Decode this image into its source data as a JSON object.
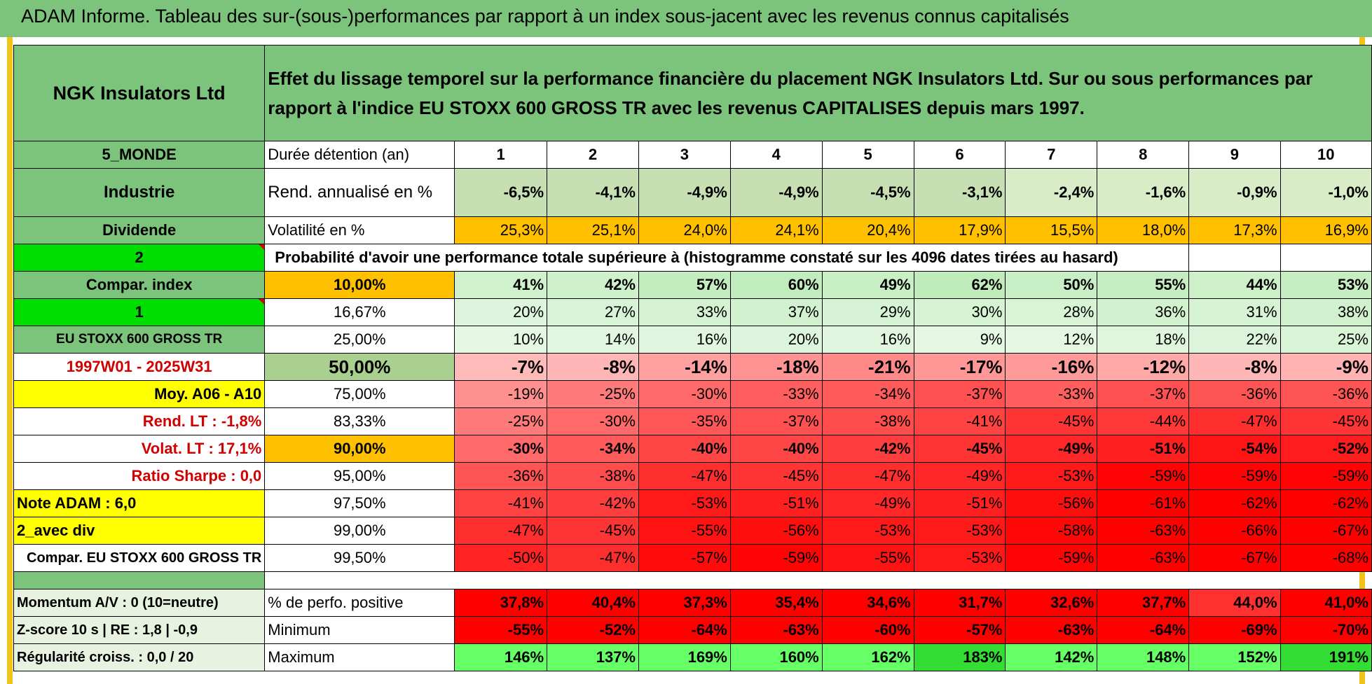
{
  "banner_title": "ADAM Informe. Tableau des sur-(sous-)performances par rapport à un index sous-jacent avec les revenus connus capitalisés",
  "company": "NGK Insulators Ltd",
  "description": "Effet du lissage temporel sur la performance financière du placement NGK Insulators Ltd. Sur ou sous performances par rapport à l'indice EU STOXX 600 GROSS TR avec les revenus CAPITALISES depuis mars 1997.",
  "left_labels": {
    "region": "5_MONDE",
    "sector": "Industrie",
    "dividend": "Dividende",
    "n2": "2",
    "compar_index": "Compar. index",
    "n1": "1",
    "index_name": "EU STOXX 600 GROSS TR",
    "period": "1997W01 - 2025W31",
    "moy": "Moy. A06 - A10",
    "rend_lt": "Rend. LT :    -1,8%",
    "volat_lt": "Volat. LT :    17,1%",
    "sharpe": "Ratio Sharpe :     0,0",
    "note": "Note ADAM : 6,0",
    "avec_div": "2_avec div",
    "compar_full": "Compar. EU STOXX 600 GROSS TR",
    "momentum": "Momentum A/V : 0 (10=neutre)",
    "zscore": "Z-score 10 s | RE : 1,8 | -0,9",
    "regularite": "Régularité croiss. : 0,0 / 20"
  },
  "row_labels": {
    "duree": "Durée détention (an)",
    "rend": "Rend. annualisé en %",
    "vol": "Volatilité en %",
    "proba": "Probabilité d'avoir une performance totale supérieure à (histogramme constaté sur les 4096 dates tirées au hasard)",
    "pct_pos": "% de perfo. positive",
    "minimum": "Minimum",
    "maximum": "Maximum"
  },
  "years": [
    "1",
    "2",
    "3",
    "4",
    "5",
    "6",
    "7",
    "8",
    "9",
    "10"
  ],
  "rend": [
    "-6,5%",
    "-4,1%",
    "-4,9%",
    "-4,9%",
    "-4,5%",
    "-3,1%",
    "-2,4%",
    "-1,6%",
    "-0,9%",
    "-1,0%"
  ],
  "vol": [
    "25,3%",
    "25,1%",
    "24,0%",
    "24,1%",
    "20,4%",
    "17,9%",
    "15,5%",
    "18,0%",
    "17,3%",
    "16,9%"
  ],
  "percentiles": [
    {
      "p": "10,00%",
      "values": [
        "41%",
        "42%",
        "57%",
        "60%",
        "49%",
        "62%",
        "50%",
        "55%",
        "44%",
        "53%"
      ]
    },
    {
      "p": "16,67%",
      "values": [
        "20%",
        "27%",
        "33%",
        "37%",
        "29%",
        "30%",
        "28%",
        "36%",
        "31%",
        "38%"
      ]
    },
    {
      "p": "25,00%",
      "values": [
        "10%",
        "14%",
        "16%",
        "20%",
        "16%",
        "9%",
        "12%",
        "18%",
        "22%",
        "25%"
      ]
    },
    {
      "p": "50,00%",
      "values": [
        "-7%",
        "-8%",
        "-14%",
        "-18%",
        "-21%",
        "-17%",
        "-16%",
        "-12%",
        "-8%",
        "-9%"
      ]
    },
    {
      "p": "75,00%",
      "values": [
        "-19%",
        "-25%",
        "-30%",
        "-33%",
        "-34%",
        "-37%",
        "-33%",
        "-37%",
        "-36%",
        "-36%"
      ]
    },
    {
      "p": "83,33%",
      "values": [
        "-25%",
        "-30%",
        "-35%",
        "-37%",
        "-38%",
        "-41%",
        "-45%",
        "-44%",
        "-47%",
        "-45%"
      ]
    },
    {
      "p": "90,00%",
      "values": [
        "-30%",
        "-34%",
        "-40%",
        "-40%",
        "-42%",
        "-45%",
        "-49%",
        "-51%",
        "-54%",
        "-52%"
      ]
    },
    {
      "p": "95,00%",
      "values": [
        "-36%",
        "-38%",
        "-47%",
        "-45%",
        "-47%",
        "-49%",
        "-53%",
        "-59%",
        "-59%",
        "-59%"
      ]
    },
    {
      "p": "97,50%",
      "values": [
        "-41%",
        "-42%",
        "-53%",
        "-51%",
        "-49%",
        "-51%",
        "-56%",
        "-61%",
        "-62%",
        "-62%"
      ]
    },
    {
      "p": "99,00%",
      "values": [
        "-47%",
        "-45%",
        "-55%",
        "-56%",
        "-53%",
        "-53%",
        "-58%",
        "-63%",
        "-66%",
        "-67%"
      ]
    },
    {
      "p": "99,50%",
      "values": [
        "-50%",
        "-47%",
        "-57%",
        "-59%",
        "-55%",
        "-53%",
        "-59%",
        "-63%",
        "-67%",
        "-68%"
      ]
    }
  ],
  "pct_pos": [
    "37,8%",
    "40,4%",
    "37,3%",
    "35,4%",
    "34,6%",
    "31,7%",
    "32,6%",
    "37,7%",
    "44,0%",
    "41,0%"
  ],
  "minimum": [
    "-55%",
    "-52%",
    "-64%",
    "-63%",
    "-60%",
    "-57%",
    "-63%",
    "-64%",
    "-69%",
    "-70%"
  ],
  "maximum": [
    "146%",
    "137%",
    "169%",
    "160%",
    "162%",
    "183%",
    "142%",
    "148%",
    "152%",
    "191%"
  ],
  "colors": {
    "header_green": "#7cc47c",
    "light_green": "#c6e0b4",
    "bright_green": "#00dd00",
    "yellow": "#ffff00",
    "orange": "#ffc000",
    "strong_red": "#ff0000"
  }
}
